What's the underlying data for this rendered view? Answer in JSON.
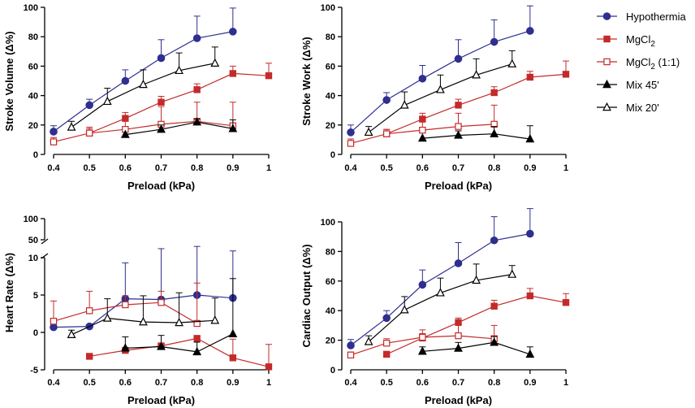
{
  "colors": {
    "Hypothermia": "#2e2f8f",
    "MgCl2": "#c42a2a",
    "MgCl2 (1:1)": "#c42a2a",
    "Mix 45'": "#000000",
    "Mix 20'": "#000000"
  },
  "legend": [
    {
      "key": "Hypothermia",
      "text": "Hypothermia",
      "sub": "",
      "post": "",
      "marker": "circle",
      "fill": true
    },
    {
      "key": "MgCl2",
      "text": "MgCl",
      "sub": "2",
      "post": "",
      "marker": "square",
      "fill": true
    },
    {
      "key": "MgCl2 (1:1)",
      "text": "MgCl",
      "sub": "2",
      "post": " (1:1)",
      "marker": "square",
      "fill": false
    },
    {
      "key": "Mix 45'",
      "text": "Mix 45'",
      "sub": "",
      "post": "",
      "marker": "triangle",
      "fill": true
    },
    {
      "key": "Mix 20'",
      "text": "Mix 20'",
      "sub": "",
      "post": "",
      "marker": "triangle",
      "fill": false
    }
  ],
  "chart_data": [
    {
      "id": "stroke-volume",
      "type": "line",
      "xlabel": "Preload (kPa)",
      "ylabel": "Stroke Volume (Δ%)",
      "xlim": [
        0.4,
        1.0
      ],
      "xticks": [
        "0.4",
        "0.5",
        "0.6",
        "0.7",
        "0.8",
        "0.9",
        "1"
      ],
      "ylim": [
        0,
        100
      ],
      "yticks": [
        0,
        20,
        40,
        60,
        80,
        100
      ],
      "series": [
        {
          "name": "Hypothermia",
          "x": [
            0.4,
            0.5,
            0.6,
            0.7,
            0.8,
            0.9
          ],
          "y": [
            15.5,
            33.5,
            50,
            65.5,
            79,
            83.5
          ],
          "err": [
            4,
            4,
            7.5,
            12.5,
            15,
            16
          ]
        },
        {
          "name": "MgCl2",
          "x": [
            0.5,
            0.6,
            0.7,
            0.8,
            0.9,
            1.0
          ],
          "y": [
            14.5,
            24.5,
            35.5,
            44,
            55,
            53.5
          ],
          "err": [
            4,
            4,
            4,
            4,
            5,
            8.5
          ]
        },
        {
          "name": "MgCl2 (1:1)",
          "x": [
            0.4,
            0.5,
            0.6,
            0.7,
            0.8,
            0.9
          ],
          "y": [
            8.5,
            14.5,
            17,
            20.5,
            22.5,
            19.5
          ],
          "err": [
            3,
            3,
            7,
            12,
            13,
            16
          ]
        },
        {
          "name": "Mix 45'",
          "x": [
            0.6,
            0.7,
            0.8,
            0.9
          ],
          "y": [
            13.5,
            17,
            22,
            17.5
          ],
          "err": [
            0,
            3,
            2,
            6
          ]
        },
        {
          "name": "Mix 20'",
          "x": [
            0.45,
            0.55,
            0.65,
            0.75,
            0.85
          ],
          "y": [
            18.5,
            36,
            47.5,
            57,
            62
          ],
          "err": [
            4,
            9,
            10,
            12,
            11
          ]
        }
      ]
    },
    {
      "id": "stroke-work",
      "type": "line",
      "xlabel": "Preload (kPa)",
      "ylabel": "Stroke Work (Δ%)",
      "xlim": [
        0.4,
        1.0
      ],
      "xticks": [
        "0.4",
        "0.5",
        "0.6",
        "0.7",
        "0.8",
        "0.9",
        "1"
      ],
      "ylim": [
        0,
        100
      ],
      "yticks": [
        0,
        20,
        40,
        60,
        80,
        100
      ],
      "series": [
        {
          "name": "Hypothermia",
          "x": [
            0.4,
            0.5,
            0.6,
            0.7,
            0.8,
            0.9
          ],
          "y": [
            15,
            37,
            51.5,
            65,
            76.5,
            84
          ],
          "err": [
            5,
            5,
            9,
            13,
            15,
            17
          ]
        },
        {
          "name": "MgCl2",
          "x": [
            0.5,
            0.6,
            0.7,
            0.8,
            0.9,
            1.0
          ],
          "y": [
            14,
            24,
            33.5,
            42,
            52.5,
            54.5
          ],
          "err": [
            3,
            4,
            4,
            4,
            4,
            9
          ]
        },
        {
          "name": "MgCl2 (1:1)",
          "x": [
            0.4,
            0.5,
            0.6,
            0.7,
            0.8
          ],
          "y": [
            7.5,
            14,
            16.5,
            19,
            20.5
          ],
          "err": [
            3,
            3,
            6,
            9,
            13
          ]
        },
        {
          "name": "Mix 45'",
          "x": [
            0.6,
            0.7,
            0.8,
            0.9
          ],
          "y": [
            11,
            13,
            14,
            10.5
          ],
          "err": [
            0,
            3,
            5,
            9
          ]
        },
        {
          "name": "Mix 20'",
          "x": [
            0.45,
            0.55,
            0.65,
            0.75,
            0.85
          ],
          "y": [
            15,
            33.5,
            44,
            54,
            61.5
          ],
          "err": [
            4,
            9,
            10,
            11,
            9
          ]
        }
      ]
    },
    {
      "id": "heart-rate",
      "type": "line",
      "xlabel": "Preload (kPa)",
      "ylabel": "Heart Rate (Δ%)",
      "xlim": [
        0.4,
        1.0
      ],
      "xticks": [
        "0.4",
        "0.5",
        "0.6",
        "0.7",
        "0.8",
        "0.9",
        "1"
      ],
      "ylim": [
        -5,
        10
      ],
      "yticks": [
        -5,
        0,
        5,
        10
      ],
      "upper_segment_ticks": [
        50,
        100
      ],
      "axis_break": true,
      "series": [
        {
          "name": "Hypothermia",
          "x": [
            0.4,
            0.5,
            0.6,
            0.7,
            0.8,
            0.9
          ],
          "y": [
            0.7,
            0.8,
            4.5,
            4.4,
            5,
            4.6
          ],
          "err": [
            0,
            0,
            4.8,
            6.8,
            6.5,
            6.3
          ]
        },
        {
          "name": "MgCl2",
          "x": [
            0.5,
            0.6,
            0.7,
            0.8,
            0.9,
            1.0
          ],
          "y": [
            -3.2,
            -2.4,
            -1.8,
            -0.8,
            -3.4,
            -4.6
          ],
          "err": [
            0,
            0,
            0,
            0,
            2.5,
            3
          ]
        },
        {
          "name": "MgCl2 (1:1)",
          "x": [
            0.4,
            0.5,
            0.6,
            0.7,
            0.8
          ],
          "y": [
            1.5,
            2.9,
            3.7,
            4,
            1.2
          ],
          "err": [
            2.7,
            2.6,
            1.2,
            1.5,
            5.4
          ]
        },
        {
          "name": "Mix 45'",
          "x": [
            0.6,
            0.7,
            0.8,
            0.9
          ],
          "y": [
            -2.1,
            -1.9,
            -2.6,
            -0.2
          ],
          "err": [
            1.5,
            1.5,
            1.3,
            7.4
          ]
        },
        {
          "name": "Mix 20'",
          "x": [
            0.45,
            0.55,
            0.65,
            0.75,
            0.85
          ],
          "y": [
            -0.3,
            1.9,
            1.4,
            1.3,
            1.6
          ],
          "err": [
            0.6,
            2.6,
            3.5,
            4,
            3
          ]
        }
      ]
    },
    {
      "id": "cardiac-output",
      "type": "line",
      "xlabel": "Preload (kPa)",
      "ylabel": "Cardiac Output (Δ%)",
      "xlim": [
        0.4,
        1.0
      ],
      "xticks": [
        "0.4",
        "0.5",
        "0.6",
        "0.7",
        "0.8",
        "0.9",
        "1"
      ],
      "ylim": [
        0,
        100
      ],
      "yticks": [
        0,
        20,
        40,
        60,
        80,
        100
      ],
      "series": [
        {
          "name": "Hypothermia",
          "x": [
            0.4,
            0.5,
            0.6,
            0.7,
            0.8,
            0.9
          ],
          "y": [
            16.5,
            35,
            57.5,
            72,
            87.5,
            92
          ],
          "err": [
            4,
            5,
            10,
            14,
            16,
            17
          ]
        },
        {
          "name": "MgCl2",
          "x": [
            0.5,
            0.6,
            0.7,
            0.8,
            0.9,
            1.0
          ],
          "y": [
            10.5,
            21.5,
            32,
            43,
            50,
            45.5
          ],
          "err": [
            0,
            3,
            3,
            4,
            5,
            6
          ]
        },
        {
          "name": "MgCl2 (1:1)",
          "x": [
            0.4,
            0.5,
            0.6,
            0.7,
            0.8
          ],
          "y": [
            10,
            18,
            22,
            23,
            21
          ],
          "err": [
            2,
            3,
            5,
            8,
            9
          ]
        },
        {
          "name": "Mix 45'",
          "x": [
            0.6,
            0.7,
            0.8,
            0.9
          ],
          "y": [
            12.5,
            14.5,
            18.5,
            10.5
          ],
          "err": [
            3,
            4,
            4,
            5
          ]
        },
        {
          "name": "Mix 20'",
          "x": [
            0.45,
            0.55,
            0.65,
            0.75,
            0.85
          ],
          "y": [
            19,
            40.5,
            52,
            60.5,
            64.5
          ],
          "err": [
            4,
            9,
            10,
            11,
            6
          ]
        }
      ]
    }
  ]
}
